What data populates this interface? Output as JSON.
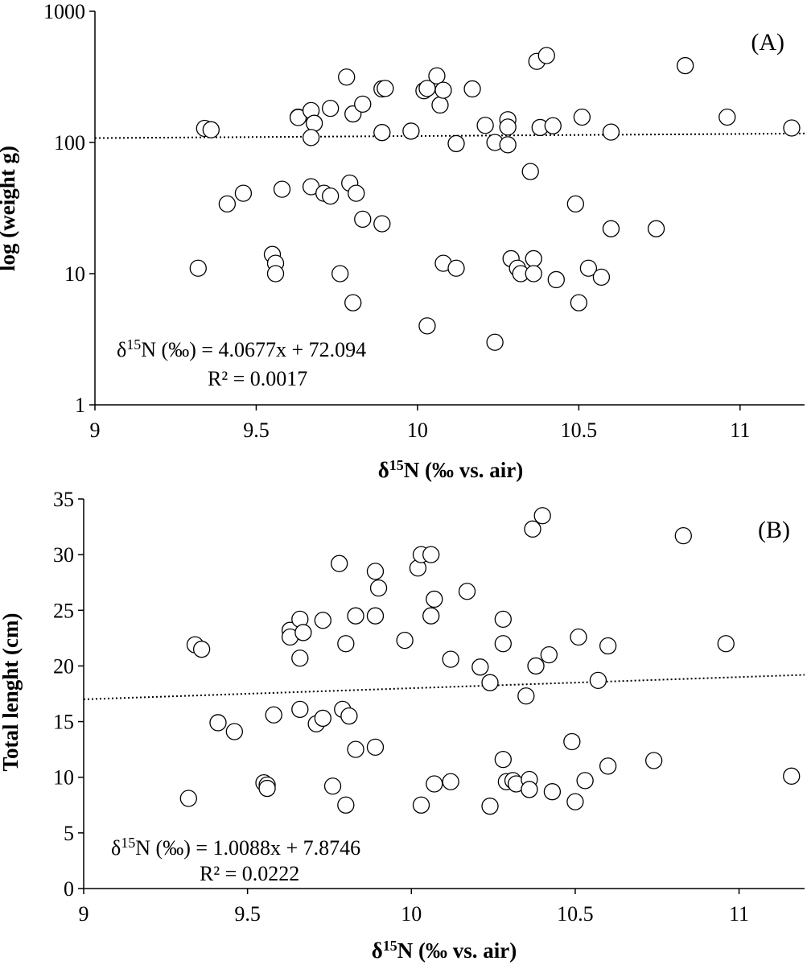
{
  "chart_data": [
    {
      "type": "scatter",
      "panel_label": "(A)",
      "xlabel_prefix": "δ",
      "xlabel_sup": "15",
      "xlabel_rest": "N (‰ vs. air)",
      "ylabel": "log (weight g)",
      "yscale": "log",
      "xlim": [
        9,
        11.2
      ],
      "ylim": [
        1,
        1000
      ],
      "xticks": [
        9,
        9.5,
        10,
        10.5,
        11
      ],
      "xtick_labels": [
        "9",
        "9.5",
        "10",
        "10.5",
        "11"
      ],
      "yticks": [
        1,
        10,
        100,
        1000
      ],
      "ytick_labels": [
        "1",
        "10",
        "100",
        "1000"
      ],
      "equation_prefix": "δ",
      "equation_sup": "15",
      "equation_rest": "N (‰) = 4.0677x + 72.094",
      "r2": "R² = 0.0017",
      "trend": {
        "x0": 9,
        "y0": 108,
        "x1": 11.2,
        "y1": 117
      },
      "points": [
        [
          9.32,
          11
        ],
        [
          9.34,
          128
        ],
        [
          9.36,
          125
        ],
        [
          9.41,
          34
        ],
        [
          9.46,
          41
        ],
        [
          9.55,
          14
        ],
        [
          9.56,
          12
        ],
        [
          9.56,
          10
        ],
        [
          9.58,
          44
        ],
        [
          9.63,
          156
        ],
        [
          9.63,
          155
        ],
        [
          9.67,
          175
        ],
        [
          9.67,
          46
        ],
        [
          9.68,
          140
        ],
        [
          9.67,
          109
        ],
        [
          9.71,
          41
        ],
        [
          9.73,
          39
        ],
        [
          9.73,
          182
        ],
        [
          9.76,
          10
        ],
        [
          9.78,
          315
        ],
        [
          9.79,
          49
        ],
        [
          9.8,
          165
        ],
        [
          9.8,
          6
        ],
        [
          9.81,
          41
        ],
        [
          9.83,
          26
        ],
        [
          9.83,
          196
        ],
        [
          9.89,
          24
        ],
        [
          9.89,
          119
        ],
        [
          9.89,
          256
        ],
        [
          9.9,
          258
        ],
        [
          9.98,
          122
        ],
        [
          10.02,
          248
        ],
        [
          10.03,
          258
        ],
        [
          10.03,
          4
        ],
        [
          10.06,
          322
        ],
        [
          10.07,
          193
        ],
        [
          10.08,
          250
        ],
        [
          10.08,
          12
        ],
        [
          10.12,
          11
        ],
        [
          10.12,
          98
        ],
        [
          10.17,
          256
        ],
        [
          10.21,
          135
        ],
        [
          10.24,
          100
        ],
        [
          10.24,
          3
        ],
        [
          10.28,
          96
        ],
        [
          10.28,
          149
        ],
        [
          10.28,
          131
        ],
        [
          10.29,
          13
        ],
        [
          10.31,
          11
        ],
        [
          10.32,
          10
        ],
        [
          10.35,
          60
        ],
        [
          10.36,
          13
        ],
        [
          10.36,
          10
        ],
        [
          10.37,
          415
        ],
        [
          10.38,
          130
        ],
        [
          10.4,
          460
        ],
        [
          10.42,
          134
        ],
        [
          10.43,
          9
        ],
        [
          10.49,
          34
        ],
        [
          10.5,
          6
        ],
        [
          10.51,
          156
        ],
        [
          10.53,
          11
        ],
        [
          10.57,
          9.4
        ],
        [
          10.6,
          22
        ],
        [
          10.6,
          120
        ],
        [
          10.74,
          22
        ],
        [
          10.83,
          385
        ],
        [
          10.96,
          156
        ],
        [
          11.16,
          129
        ]
      ]
    },
    {
      "type": "scatter",
      "panel_label": "(B)",
      "xlabel_prefix": "δ",
      "xlabel_sup": "15",
      "xlabel_rest": "N (‰ vs. air)",
      "ylabel": "Total lenght (cm)",
      "yscale": "linear",
      "xlim": [
        9,
        11.2
      ],
      "ylim": [
        0,
        35
      ],
      "xticks": [
        9,
        9.5,
        10,
        10.5,
        11
      ],
      "xtick_labels": [
        "9",
        "9.5",
        "10",
        "10.5",
        "11"
      ],
      "yticks": [
        0,
        5,
        10,
        15,
        20,
        25,
        30,
        35
      ],
      "ytick_labels": [
        "0",
        "5",
        "10",
        "15",
        "20",
        "25",
        "30",
        "35"
      ],
      "equation_prefix": "δ",
      "equation_sup": "15",
      "equation_rest": "N (‰)  = 1.0088x + 7.8746",
      "r2": "R² = 0.0222",
      "trend": {
        "x0": 9,
        "y0": 17.0,
        "x1": 11.2,
        "y1": 19.2
      },
      "points": [
        [
          9.32,
          8.1
        ],
        [
          9.34,
          21.9
        ],
        [
          9.36,
          21.5
        ],
        [
          9.41,
          14.9
        ],
        [
          9.46,
          14.1
        ],
        [
          9.55,
          9.5
        ],
        [
          9.56,
          9.3
        ],
        [
          9.56,
          9.0
        ],
        [
          9.58,
          15.6
        ],
        [
          9.63,
          23.2
        ],
        [
          9.63,
          22.6
        ],
        [
          9.66,
          24.2
        ],
        [
          9.67,
          23.0
        ],
        [
          9.66,
          20.7
        ],
        [
          9.66,
          16.1
        ],
        [
          9.71,
          14.8
        ],
        [
          9.73,
          15.3
        ],
        [
          9.73,
          24.1
        ],
        [
          9.76,
          9.2
        ],
        [
          9.78,
          29.2
        ],
        [
          9.79,
          16.1
        ],
        [
          9.8,
          22.0
        ],
        [
          9.8,
          7.5
        ],
        [
          9.81,
          15.5
        ],
        [
          9.83,
          12.5
        ],
        [
          9.83,
          24.5
        ],
        [
          9.89,
          12.7
        ],
        [
          9.89,
          24.5
        ],
        [
          9.89,
          28.5
        ],
        [
          9.9,
          27.0
        ],
        [
          9.98,
          22.3
        ],
        [
          10.02,
          28.8
        ],
        [
          10.03,
          30.0
        ],
        [
          10.03,
          7.5
        ],
        [
          10.06,
          30.0
        ],
        [
          10.06,
          24.5
        ],
        [
          10.07,
          26.0
        ],
        [
          10.07,
          9.4
        ],
        [
          10.12,
          9.6
        ],
        [
          10.12,
          20.6
        ],
        [
          10.17,
          26.7
        ],
        [
          10.21,
          19.9
        ],
        [
          10.24,
          18.5
        ],
        [
          10.24,
          7.4
        ],
        [
          10.28,
          22.0
        ],
        [
          10.28,
          24.2
        ],
        [
          10.28,
          11.6
        ],
        [
          10.29,
          9.6
        ],
        [
          10.31,
          9.7
        ],
        [
          10.32,
          9.4
        ],
        [
          10.35,
          17.3
        ],
        [
          10.36,
          9.8
        ],
        [
          10.36,
          8.9
        ],
        [
          10.37,
          32.3
        ],
        [
          10.38,
          20.0
        ],
        [
          10.4,
          33.5
        ],
        [
          10.42,
          21.0
        ],
        [
          10.43,
          8.7
        ],
        [
          10.49,
          13.2
        ],
        [
          10.5,
          7.8
        ],
        [
          10.51,
          22.6
        ],
        [
          10.53,
          9.7
        ],
        [
          10.57,
          18.7
        ],
        [
          10.6,
          11.0
        ],
        [
          10.6,
          21.8
        ],
        [
          10.74,
          11.5
        ],
        [
          10.83,
          31.7
        ],
        [
          10.96,
          22.0
        ],
        [
          11.16,
          10.1
        ]
      ]
    }
  ]
}
